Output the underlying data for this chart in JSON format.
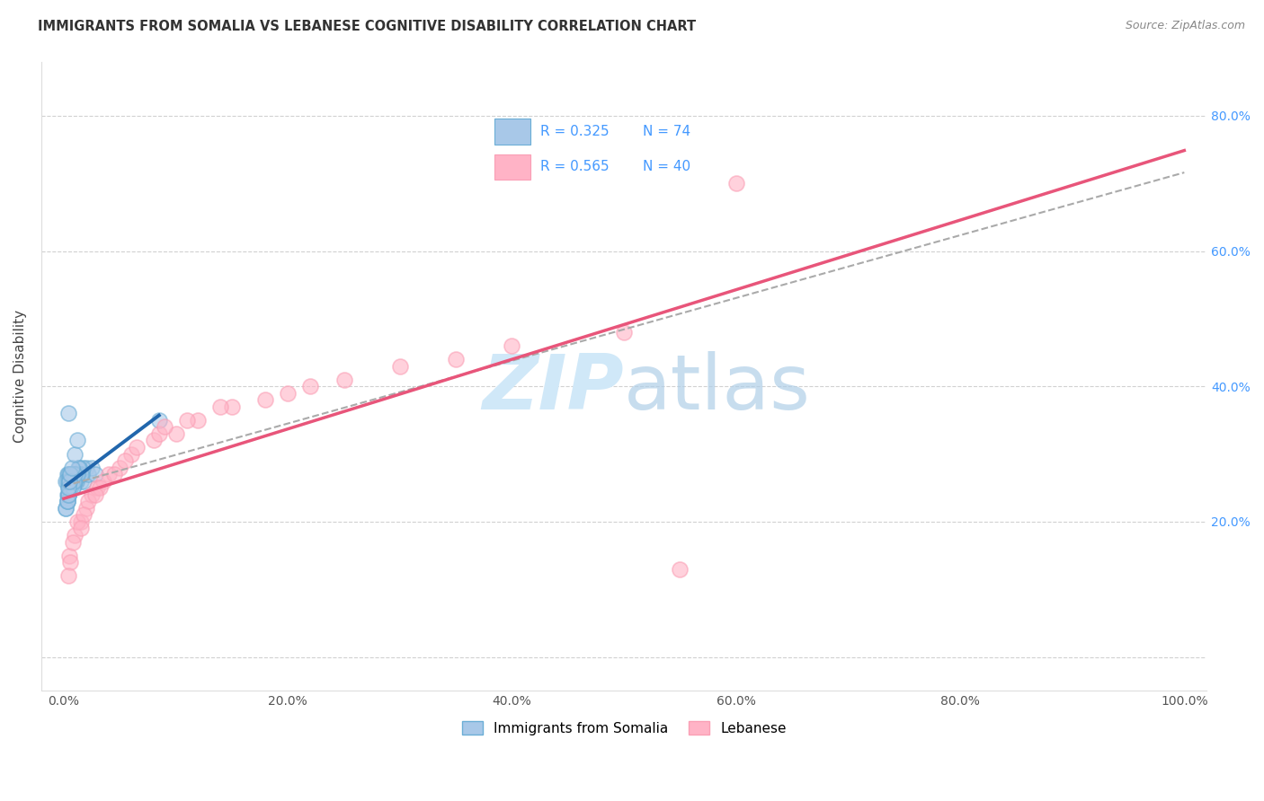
{
  "title": "IMMIGRANTS FROM SOMALIA VS LEBANESE COGNITIVE DISABILITY CORRELATION CHART",
  "source": "Source: ZipAtlas.com",
  "ylabel": "Cognitive Disability",
  "legend1_label": "Immigrants from Somalia",
  "legend2_label": "Lebanese",
  "R1": 0.325,
  "N1": 74,
  "R2": 0.565,
  "N2": 40,
  "somalia_x": [
    0.5,
    0.8,
    1.0,
    1.2,
    1.5,
    1.8,
    2.0,
    2.2,
    2.5,
    2.8,
    0.3,
    0.4,
    0.6,
    0.7,
    0.9,
    1.1,
    1.3,
    1.4,
    1.6,
    1.7,
    0.2,
    0.3,
    0.4,
    0.5,
    0.6,
    0.7,
    0.8,
    0.9,
    1.0,
    1.1,
    1.2,
    1.3,
    1.4,
    1.5,
    0.3,
    0.4,
    0.5,
    0.6,
    0.7,
    0.8,
    0.9,
    1.0,
    1.1,
    1.2,
    1.3,
    0.2,
    0.3,
    0.4,
    0.5,
    0.6,
    0.7,
    0.8,
    0.9,
    0.2,
    0.3,
    0.4,
    0.5,
    0.6,
    0.7,
    0.8,
    0.9,
    1.0,
    0.3,
    0.4,
    0.5,
    0.6,
    0.4,
    0.5,
    0.6,
    0.7,
    1.0,
    1.2,
    8.5,
    0.4
  ],
  "somalia_y": [
    27,
    27,
    26,
    27,
    26,
    26,
    28,
    27,
    28,
    27,
    27,
    27,
    26,
    26,
    26,
    26,
    27,
    28,
    27,
    28,
    26,
    26,
    25,
    26,
    25,
    26,
    26,
    26,
    26,
    27,
    27,
    27,
    28,
    27,
    24,
    24,
    25,
    25,
    26,
    25,
    26,
    26,
    27,
    27,
    28,
    22,
    23,
    24,
    25,
    25,
    26,
    26,
    27,
    22,
    23,
    24,
    25,
    25,
    26,
    25,
    26,
    27,
    23,
    24,
    26,
    27,
    25,
    26,
    27,
    28,
    30,
    32,
    35,
    36
  ],
  "lebanese_x": [
    0.5,
    1.0,
    1.5,
    2.0,
    2.5,
    3.0,
    4.0,
    5.0,
    6.0,
    8.0,
    10.0,
    12.0,
    15.0,
    18.0,
    20.0,
    25.0,
    30.0,
    35.0,
    40.0,
    50.0,
    0.8,
    1.2,
    2.2,
    3.5,
    5.5,
    8.5,
    11.0,
    14.0,
    22.0,
    0.6,
    1.8,
    3.2,
    6.5,
    9.0,
    0.4,
    1.5,
    2.8,
    4.5,
    60.0,
    55.0
  ],
  "lebanese_y": [
    15,
    18,
    20,
    22,
    24,
    25,
    27,
    28,
    30,
    32,
    33,
    35,
    37,
    38,
    39,
    41,
    43,
    44,
    46,
    48,
    17,
    20,
    23,
    26,
    29,
    33,
    35,
    37,
    40,
    14,
    21,
    25,
    31,
    34,
    12,
    19,
    24,
    27,
    70,
    13
  ],
  "somalia_color": "#a8c8e8",
  "somalia_edge_color": "#6baed6",
  "lebanese_color": "#ffb3c6",
  "lebanese_edge_color": "#fa9fb5",
  "trend_somalia_color": "#2166ac",
  "trend_lebanese_color": "#e8557a",
  "trend_combined_color": "#aaaaaa",
  "background_color": "#ffffff",
  "grid_color": "#cccccc",
  "title_color": "#333333",
  "legend_text_color": "#4499ff",
  "right_axis_color": "#4499ff",
  "watermark_color": "#d0e8f8",
  "xlim": [
    -2,
    102
  ],
  "ylim": [
    -5,
    88
  ],
  "ytick_positions": [
    0,
    20,
    40,
    60,
    80
  ],
  "ytick_labels_right": [
    "",
    "20.0%",
    "40.0%",
    "60.0%",
    "80.0%"
  ],
  "xtick_positions": [
    0,
    20,
    40,
    60,
    80,
    100
  ],
  "xtick_labels": [
    "0.0%",
    "20.0%",
    "40.0%",
    "60.0%",
    "80.0%",
    "100.0%"
  ]
}
